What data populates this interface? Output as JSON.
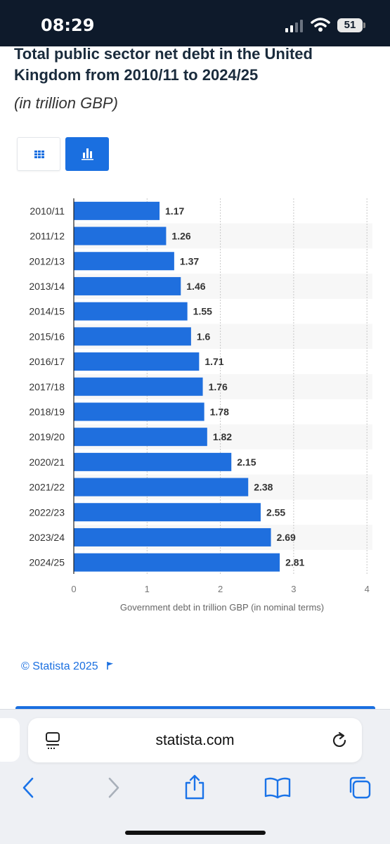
{
  "status_bar": {
    "time": "08:29",
    "battery": "51"
  },
  "page": {
    "title": "Total public sector net debt in the United Kingdom from 2010/11 to 2024/25",
    "subtitle": "(in trillion GBP)",
    "copyright": "© Statista 2025"
  },
  "browser": {
    "url": "statista.com"
  },
  "colors": {
    "accent": "#1a6fe0",
    "bar": "#1f6fde",
    "statusbar": "#0e1a2b"
  },
  "chart_data": {
    "type": "bar",
    "orientation": "horizontal",
    "categories": [
      "2010/11",
      "2011/12",
      "2012/13",
      "2013/14",
      "2014/15",
      "2015/16",
      "2016/17",
      "2017/18",
      "2018/19",
      "2019/20",
      "2020/21",
      "2021/22",
      "2022/23",
      "2023/24",
      "2024/25"
    ],
    "values": [
      1.17,
      1.26,
      1.37,
      1.46,
      1.55,
      1.6,
      1.71,
      1.76,
      1.78,
      1.82,
      2.15,
      2.38,
      2.55,
      2.69,
      2.81
    ],
    "value_labels": [
      "1.17",
      "1.26",
      "1.37",
      "1.46",
      "1.55",
      "1.6",
      "1.71",
      "1.76",
      "1.78",
      "1.82",
      "2.15",
      "2.38",
      "2.55",
      "2.69",
      "2.81"
    ],
    "xlabel": "Government debt in trillion GBP (in nominal terms)",
    "xlim": [
      0,
      4
    ],
    "xticks": [
      "0",
      "1",
      "2",
      "3",
      "4"
    ],
    "grid": "vertical dotted"
  }
}
